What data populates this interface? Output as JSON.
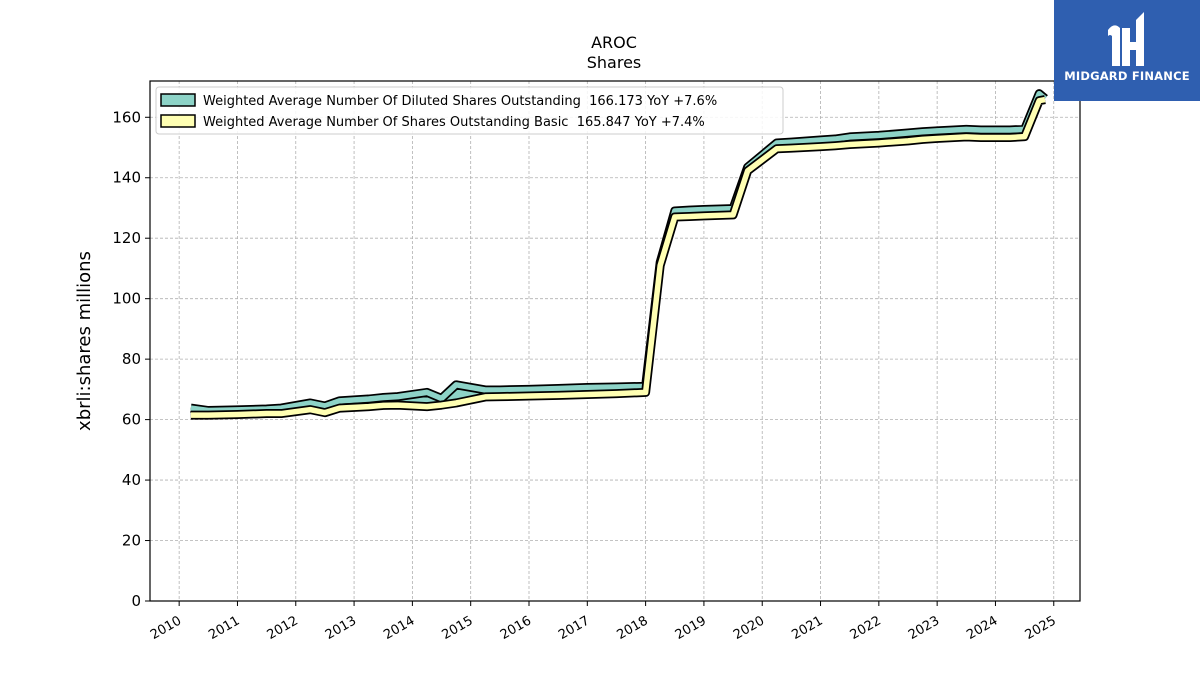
{
  "chart_data": {
    "type": "line",
    "title": "AROC",
    "subtitle": "Shares",
    "ylabel": "xbrli:shares millions",
    "xlabel": "",
    "xlim": [
      2009.5,
      2025.45
    ],
    "ylim": [
      0,
      172
    ],
    "x_ticks": [
      "2010",
      "2011",
      "2012",
      "2013",
      "2014",
      "2015",
      "2016",
      "2017",
      "2018",
      "2019",
      "2020",
      "2021",
      "2022",
      "2023",
      "2024",
      "2025"
    ],
    "y_ticks": [
      0,
      20,
      40,
      60,
      80,
      100,
      120,
      140,
      160
    ],
    "grid": true,
    "legend_position": "top-left",
    "series": [
      {
        "name": "Weighted Average Number Of Diluted Shares Outstanding  166.173 YoY +7.6%",
        "color": "#8dd3c7",
        "x": [
          2010.2,
          2010.5,
          2011.0,
          2011.5,
          2011.75,
          2012.25,
          2012.5,
          2012.75,
          2013.25,
          2013.5,
          2013.75,
          2014.25,
          2014.5,
          2014.75,
          2015.25,
          2015.5,
          2016.0,
          2016.5,
          2017.0,
          2017.5,
          2018.0,
          2018.25,
          2018.5,
          2018.75,
          2019.0,
          2019.5,
          2019.75,
          2020.25,
          2020.5,
          2021.0,
          2021.25,
          2021.5,
          2022.0,
          2022.5,
          2022.75,
          2023.0,
          2023.5,
          2023.75,
          2024.0,
          2024.25,
          2024.5,
          2024.75,
          2024.85
        ],
        "y": [
          63.8,
          63.0,
          63.2,
          63.5,
          63.8,
          65.5,
          64.5,
          66.2,
          66.8,
          67.3,
          67.6,
          69.0,
          67.0,
          71.5,
          69.8,
          69.8,
          70.0,
          70.3,
          70.6,
          70.8,
          71.0,
          112.0,
          129.0,
          129.3,
          129.5,
          129.8,
          143.5,
          151.5,
          151.8,
          152.5,
          152.8,
          153.5,
          154.0,
          154.8,
          155.2,
          155.5,
          156.0,
          155.8,
          155.8,
          155.8,
          156.0,
          167.8,
          166.173
        ]
      },
      {
        "name": "Weighted Average Number Of Shares Outstanding Basic  165.847 YoY +7.4%",
        "color": "#ffffb3",
        "x": [
          2010.2,
          2010.5,
          2011.0,
          2011.5,
          2011.75,
          2012.25,
          2012.5,
          2012.75,
          2013.25,
          2013.5,
          2013.75,
          2014.25,
          2014.5,
          2014.75,
          2015.25,
          2015.5,
          2016.0,
          2016.5,
          2017.0,
          2017.5,
          2018.0,
          2018.25,
          2018.5,
          2018.75,
          2019.0,
          2019.5,
          2019.75,
          2020.25,
          2020.5,
          2021.0,
          2021.25,
          2021.5,
          2022.0,
          2022.5,
          2022.75,
          2023.0,
          2023.5,
          2023.75,
          2024.0,
          2024.25,
          2024.5,
          2024.75,
          2024.85
        ],
        "y": [
          61.5,
          61.5,
          61.7,
          62.0,
          62.0,
          63.3,
          62.3,
          63.8,
          64.3,
          64.7,
          64.8,
          64.3,
          64.8,
          65.5,
          67.5,
          67.6,
          67.8,
          68.0,
          68.3,
          68.6,
          69.0,
          111.0,
          127.0,
          127.2,
          127.4,
          127.7,
          142.3,
          149.6,
          149.8,
          150.3,
          150.6,
          151.0,
          151.5,
          152.2,
          152.7,
          153.0,
          153.5,
          153.3,
          153.3,
          153.3,
          153.6,
          165.5,
          165.847
        ]
      }
    ]
  },
  "logo": {
    "text": "MIDGARD FINANCE"
  }
}
